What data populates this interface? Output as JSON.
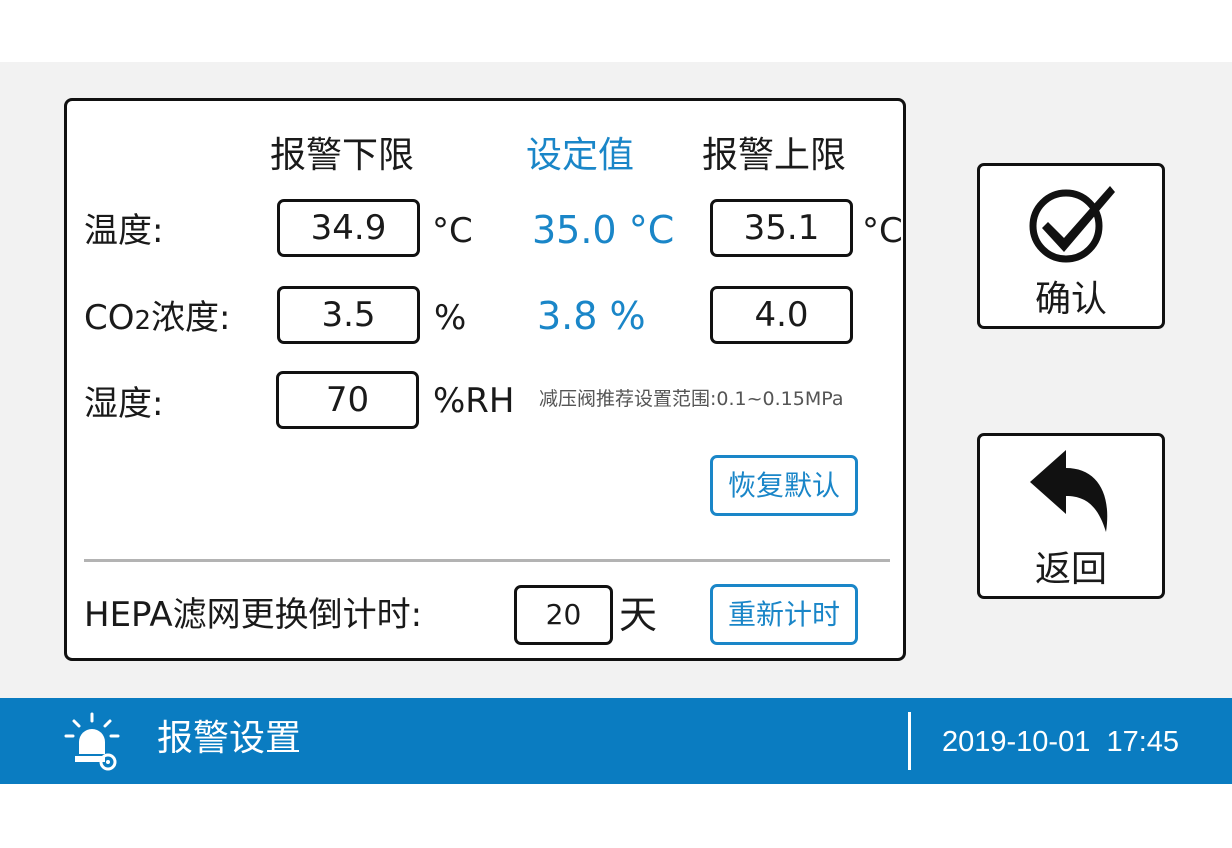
{
  "headers": {
    "low": "报警下限",
    "set": "设定值",
    "high": "报警上限"
  },
  "rows": {
    "temperature": {
      "label": "温度:",
      "low": "34.9",
      "low_unit": "°C",
      "set": "35.0 °C",
      "high": "35.1",
      "high_unit": "°C"
    },
    "co2": {
      "label_prefix": "CO",
      "label_sub": "2",
      "label_suffix": "浓度:",
      "low": "3.5",
      "low_unit": "%",
      "set": "3.8 %",
      "high": "4.0"
    },
    "humidity": {
      "label": "湿度:",
      "low": "70",
      "low_unit": "%RH",
      "note": "减压阀推荐设置范围:0.1~0.15MPa"
    }
  },
  "restore_default_label": "恢复默认",
  "hepa": {
    "label": "HEPA滤网更换倒计时:",
    "value": "20",
    "unit": "天",
    "reset_label": "重新计时"
  },
  "side_buttons": {
    "confirm_label": "确认",
    "back_label": "返回"
  },
  "status_bar": {
    "title": "报警设置",
    "datetime": "2019-10-01  17:45"
  },
  "colors": {
    "accent": "#1a86c8",
    "bar": "#0a7cc1",
    "screen_bg": "#f2f2f2",
    "divider": "#b3b3b3"
  },
  "icons": {
    "status": "alarm-gear-icon",
    "confirm": "checkmark-circle-icon",
    "back": "back-arrow-icon"
  }
}
